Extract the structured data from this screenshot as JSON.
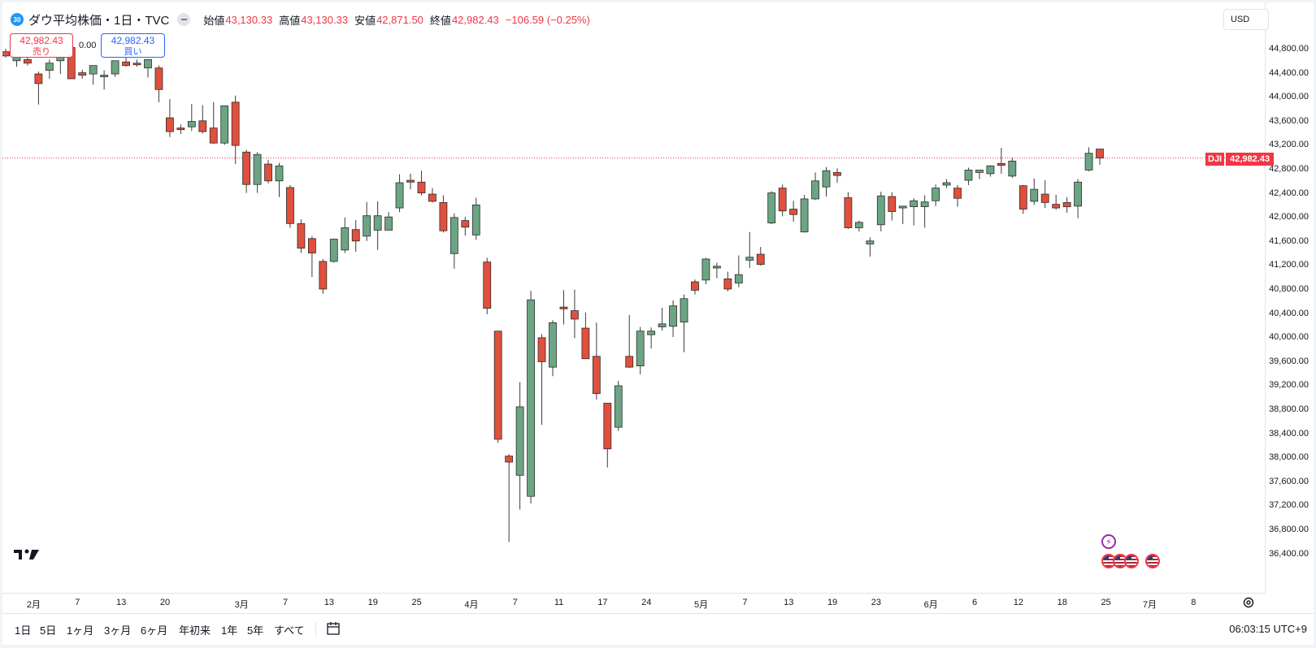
{
  "symbol": {
    "badge": "30",
    "title": "ダウ平均株価・1日・TVC",
    "open_label": "始値",
    "open": "43,130.33",
    "high_label": "高値",
    "high": "43,130.33",
    "low_label": "安値",
    "low": "42,871.50",
    "close_label": "終値",
    "close": "42,982.43",
    "change": "−106.59 (−0.25%)"
  },
  "trade": {
    "sell_price": "42,982.43",
    "sell_label": "売り",
    "spread": "0.00",
    "buy_price": "42,982.43",
    "buy_label": "買い"
  },
  "price_axis": {
    "currency": "USD",
    "ticks": [
      "44,800.00",
      "44,400.00",
      "44,000.00",
      "43,600.00",
      "43,200.00",
      "42,800.00",
      "42,400.00",
      "42,000.00",
      "41,600.00",
      "41,200.00",
      "40,800.00",
      "40,400.00",
      "40,000.00",
      "39,600.00",
      "39,200.00",
      "38,800.00",
      "38,400.00",
      "38,000.00",
      "37,600.00",
      "37,200.00",
      "36,800.00",
      "36,400.00"
    ],
    "last_symbol": "DJI",
    "last_price": "42,982.43"
  },
  "time_axis": [
    "2月",
    "7",
    "13",
    "20",
    "3月",
    "7",
    "13",
    "19",
    "25",
    "4月",
    "7",
    "11",
    "17",
    "24",
    "5月",
    "7",
    "13",
    "19",
    "23",
    "6月",
    "6",
    "12",
    "18",
    "25",
    "7月",
    "8"
  ],
  "ranges": [
    "1日",
    "5日",
    "1ヶ月",
    "3ヶ月",
    "6ヶ月",
    "年初来",
    "1年",
    "5年",
    "すべて"
  ],
  "clock": "06:03:15 UTC+9",
  "colors": {
    "up": "#6ba583",
    "down": "#e0503d",
    "price_line": "#f23645"
  },
  "chart_data": {
    "type": "candlestick",
    "ylim": [
      36100,
      45100
    ],
    "candles": [
      {
        "o": 44750,
        "h": 44800,
        "l": 44650,
        "c": 44680
      },
      {
        "o": 44600,
        "h": 44700,
        "l": 44500,
        "c": 44660
      },
      {
        "o": 44620,
        "h": 44680,
        "l": 44520,
        "c": 44560
      },
      {
        "o": 44380,
        "h": 44420,
        "l": 43870,
        "c": 44220
      },
      {
        "o": 44440,
        "h": 44620,
        "l": 44300,
        "c": 44560
      },
      {
        "o": 44600,
        "h": 44650,
        "l": 44380,
        "c": 44660
      },
      {
        "o": 44820,
        "h": 44900,
        "l": 44300,
        "c": 44300
      },
      {
        "o": 44400,
        "h": 44450,
        "l": 44300,
        "c": 44360
      },
      {
        "o": 44380,
        "h": 44450,
        "l": 44200,
        "c": 44520
      },
      {
        "o": 44360,
        "h": 44440,
        "l": 44120,
        "c": 44360
      },
      {
        "o": 44380,
        "h": 44600,
        "l": 44330,
        "c": 44600
      },
      {
        "o": 44580,
        "h": 44720,
        "l": 44500,
        "c": 44520
      },
      {
        "o": 44560,
        "h": 44620,
        "l": 44500,
        "c": 44540
      },
      {
        "o": 44480,
        "h": 44620,
        "l": 44320,
        "c": 44620
      },
      {
        "o": 44480,
        "h": 44520,
        "l": 43910,
        "c": 44120
      },
      {
        "o": 43650,
        "h": 43960,
        "l": 43330,
        "c": 43420
      },
      {
        "o": 43480,
        "h": 43540,
        "l": 43380,
        "c": 43460
      },
      {
        "o": 43500,
        "h": 43880,
        "l": 43430,
        "c": 43590
      },
      {
        "o": 43600,
        "h": 43860,
        "l": 43390,
        "c": 43420
      },
      {
        "o": 43480,
        "h": 43910,
        "l": 43220,
        "c": 43230
      },
      {
        "o": 43230,
        "h": 43850,
        "l": 43200,
        "c": 43850
      },
      {
        "o": 43910,
        "h": 44020,
        "l": 42880,
        "c": 43190
      },
      {
        "o": 43080,
        "h": 43120,
        "l": 42400,
        "c": 42540
      },
      {
        "o": 42540,
        "h": 43080,
        "l": 42400,
        "c": 43040
      },
      {
        "o": 42880,
        "h": 42950,
        "l": 42560,
        "c": 42600
      },
      {
        "o": 42600,
        "h": 42900,
        "l": 42330,
        "c": 42850
      },
      {
        "o": 42490,
        "h": 42530,
        "l": 41820,
        "c": 41890
      },
      {
        "o": 41890,
        "h": 41960,
        "l": 41400,
        "c": 41480
      },
      {
        "o": 41640,
        "h": 41680,
        "l": 41000,
        "c": 41400
      },
      {
        "o": 41260,
        "h": 41300,
        "l": 40720,
        "c": 40800
      },
      {
        "o": 41260,
        "h": 41640,
        "l": 41240,
        "c": 41630
      },
      {
        "o": 41450,
        "h": 41990,
        "l": 41400,
        "c": 41820
      },
      {
        "o": 41790,
        "h": 41950,
        "l": 41420,
        "c": 41600
      },
      {
        "o": 41680,
        "h": 42250,
        "l": 41600,
        "c": 42020
      },
      {
        "o": 41780,
        "h": 42260,
        "l": 41450,
        "c": 42020
      },
      {
        "o": 41780,
        "h": 42080,
        "l": 41850,
        "c": 42000
      },
      {
        "o": 42150,
        "h": 42710,
        "l": 42080,
        "c": 42570
      },
      {
        "o": 42610,
        "h": 42720,
        "l": 42460,
        "c": 42580
      },
      {
        "o": 42580,
        "h": 42770,
        "l": 42360,
        "c": 42400
      },
      {
        "o": 42380,
        "h": 42480,
        "l": 42240,
        "c": 42260
      },
      {
        "o": 42240,
        "h": 42360,
        "l": 41740,
        "c": 41770
      },
      {
        "o": 41390,
        "h": 42060,
        "l": 41140,
        "c": 41990
      },
      {
        "o": 41940,
        "h": 42000,
        "l": 41690,
        "c": 41830
      },
      {
        "o": 41700,
        "h": 42320,
        "l": 41620,
        "c": 42200
      },
      {
        "o": 41250,
        "h": 41320,
        "l": 40380,
        "c": 40480
      },
      {
        "o": 40100,
        "h": 40100,
        "l": 38240,
        "c": 38300
      },
      {
        "o": 38020,
        "h": 38050,
        "l": 36590,
        "c": 37920
      },
      {
        "o": 37700,
        "h": 39250,
        "l": 37130,
        "c": 38840
      },
      {
        "o": 37350,
        "h": 40770,
        "l": 37230,
        "c": 40620
      },
      {
        "o": 39990,
        "h": 40050,
        "l": 38540,
        "c": 39590
      },
      {
        "o": 39500,
        "h": 40280,
        "l": 39350,
        "c": 40240
      },
      {
        "o": 40500,
        "h": 40780,
        "l": 40210,
        "c": 40470
      },
      {
        "o": 40440,
        "h": 40790,
        "l": 39980,
        "c": 40300
      },
      {
        "o": 40150,
        "h": 40410,
        "l": 39710,
        "c": 39640
      },
      {
        "o": 39680,
        "h": 40240,
        "l": 38960,
        "c": 39060
      },
      {
        "o": 38900,
        "h": 38900,
        "l": 37830,
        "c": 38140
      },
      {
        "o": 38500,
        "h": 39270,
        "l": 38440,
        "c": 39190
      },
      {
        "o": 39680,
        "h": 40370,
        "l": 39490,
        "c": 39500
      },
      {
        "o": 39520,
        "h": 40170,
        "l": 39380,
        "c": 40100
      },
      {
        "o": 40040,
        "h": 40160,
        "l": 39810,
        "c": 40100
      },
      {
        "o": 40170,
        "h": 40490,
        "l": 40110,
        "c": 40220
      },
      {
        "o": 40180,
        "h": 40610,
        "l": 40000,
        "c": 40520
      },
      {
        "o": 40250,
        "h": 40710,
        "l": 39750,
        "c": 40640
      },
      {
        "o": 40920,
        "h": 40960,
        "l": 40710,
        "c": 40780
      },
      {
        "o": 40950,
        "h": 41320,
        "l": 40880,
        "c": 41300
      },
      {
        "o": 41150,
        "h": 41240,
        "l": 40980,
        "c": 41180
      },
      {
        "o": 40970,
        "h": 41090,
        "l": 40760,
        "c": 40800
      },
      {
        "o": 40900,
        "h": 41360,
        "l": 40830,
        "c": 41040
      },
      {
        "o": 41280,
        "h": 41750,
        "l": 41150,
        "c": 41330
      },
      {
        "o": 41380,
        "h": 41500,
        "l": 41190,
        "c": 41210
      },
      {
        "o": 41900,
        "h": 42430,
        "l": 41880,
        "c": 42400
      },
      {
        "o": 42480,
        "h": 42540,
        "l": 42010,
        "c": 42100
      },
      {
        "o": 42130,
        "h": 42270,
        "l": 41920,
        "c": 42040
      },
      {
        "o": 41750,
        "h": 42370,
        "l": 41740,
        "c": 42300
      },
      {
        "o": 42300,
        "h": 42740,
        "l": 42280,
        "c": 42600
      },
      {
        "o": 42500,
        "h": 42830,
        "l": 42340,
        "c": 42770
      },
      {
        "o": 42740,
        "h": 42810,
        "l": 42570,
        "c": 42690
      },
      {
        "o": 42320,
        "h": 42410,
        "l": 41800,
        "c": 41820
      },
      {
        "o": 41820,
        "h": 41940,
        "l": 41760,
        "c": 41910
      },
      {
        "o": 41550,
        "h": 41660,
        "l": 41340,
        "c": 41600
      },
      {
        "o": 41870,
        "h": 42420,
        "l": 41760,
        "c": 42350
      },
      {
        "o": 42340,
        "h": 42410,
        "l": 41940,
        "c": 42090
      },
      {
        "o": 42150,
        "h": 42170,
        "l": 41880,
        "c": 42180
      },
      {
        "o": 42170,
        "h": 42310,
        "l": 41860,
        "c": 42270
      },
      {
        "o": 42170,
        "h": 42360,
        "l": 41820,
        "c": 42250
      },
      {
        "o": 42270,
        "h": 42540,
        "l": 42180,
        "c": 42480
      },
      {
        "o": 42530,
        "h": 42630,
        "l": 42480,
        "c": 42570
      },
      {
        "o": 42480,
        "h": 42530,
        "l": 42170,
        "c": 42310
      },
      {
        "o": 42610,
        "h": 42820,
        "l": 42530,
        "c": 42780
      },
      {
        "o": 42740,
        "h": 42780,
        "l": 42630,
        "c": 42780
      },
      {
        "o": 42720,
        "h": 42860,
        "l": 42670,
        "c": 42850
      },
      {
        "o": 42890,
        "h": 43150,
        "l": 42720,
        "c": 42860
      },
      {
        "o": 42680,
        "h": 42990,
        "l": 42650,
        "c": 42930
      },
      {
        "o": 42520,
        "h": 42530,
        "l": 42050,
        "c": 42130
      },
      {
        "o": 42260,
        "h": 42640,
        "l": 42200,
        "c": 42460
      },
      {
        "o": 42380,
        "h": 42610,
        "l": 42150,
        "c": 42240
      },
      {
        "o": 42210,
        "h": 42370,
        "l": 42120,
        "c": 42150
      },
      {
        "o": 42240,
        "h": 42330,
        "l": 42070,
        "c": 42170
      },
      {
        "o": 42180,
        "h": 42630,
        "l": 41980,
        "c": 42580
      },
      {
        "o": 42780,
        "h": 43160,
        "l": 42760,
        "c": 43060
      },
      {
        "o": 43130,
        "h": 43130,
        "l": 42870,
        "c": 42980
      }
    ]
  }
}
